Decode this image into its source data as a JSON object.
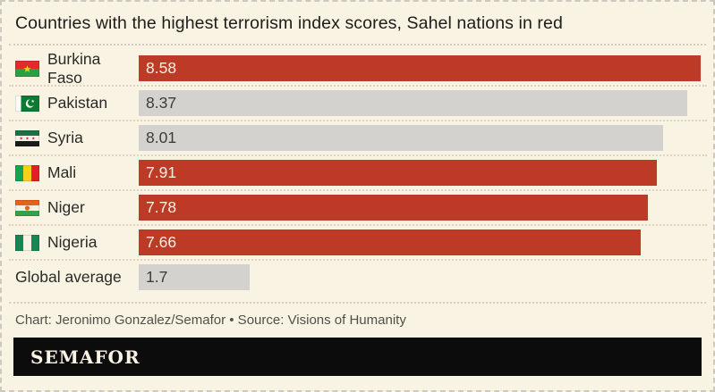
{
  "page": {
    "background": "#f8f3e2",
    "border_color": "#ccc9be"
  },
  "header": {
    "title": "Countries with the highest terrorism index scores, Sahel nations in red"
  },
  "chart_data": {
    "type": "bar",
    "orientation": "horizontal",
    "title": "Countries with the highest terrorism index scores, Sahel nations in red",
    "xlim": [
      0,
      8.58
    ],
    "grid": false,
    "legend": "none (encoding explained in title: Sahel nations in red)",
    "categories": [
      "Burkina Faso",
      "Pakistan",
      "Syria",
      "Mali",
      "Niger",
      "Nigeria",
      "Global average"
    ],
    "values": [
      8.58,
      8.37,
      8.01,
      7.91,
      7.78,
      7.66,
      1.7
    ],
    "rows": [
      {
        "label": "Burkina Faso",
        "value": 8.58,
        "value_label": "8.58",
        "sahel": true,
        "flag": "burkina-faso"
      },
      {
        "label": "Pakistan",
        "value": 8.37,
        "value_label": "8.37",
        "sahel": false,
        "flag": "pakistan"
      },
      {
        "label": "Syria",
        "value": 8.01,
        "value_label": "8.01",
        "sahel": false,
        "flag": "syria"
      },
      {
        "label": "Mali",
        "value": 7.91,
        "value_label": "7.91",
        "sahel": true,
        "flag": "mali"
      },
      {
        "label": "Niger",
        "value": 7.78,
        "value_label": "7.78",
        "sahel": true,
        "flag": "niger"
      },
      {
        "label": "Nigeria",
        "value": 7.66,
        "value_label": "7.66",
        "sahel": true,
        "flag": "nigeria"
      },
      {
        "label": "Global average",
        "value": 1.7,
        "value_label": "1.7",
        "sahel": false,
        "flag": null
      }
    ],
    "colors": {
      "sahel_bar": "#bc3a26",
      "default_bar": "#d3d2ce",
      "bar_label_on_sahel": "#f8f3e2",
      "bar_label_on_default": "#3c3c39"
    }
  },
  "footer": {
    "caption": "Chart: Jeronimo Gonzalez/Semafor • Source: Visions of Humanity",
    "brand": "SEMAFOR"
  }
}
